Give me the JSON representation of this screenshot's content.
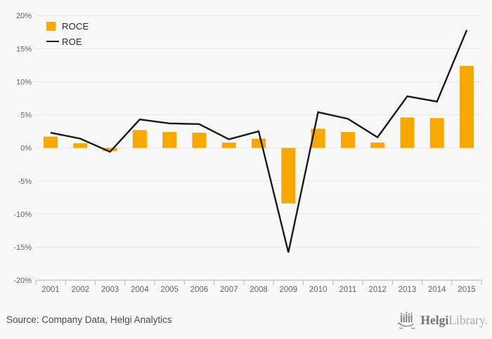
{
  "colors": {
    "background": "#f8f8f8",
    "bar": "#F8A800",
    "line": "#1a1a1a",
    "grid": "#e8e8e8",
    "axis": "#b7c0d7",
    "tick_label": "#666666",
    "legend_text": "#2b2b2b"
  },
  "chart_data": {
    "type": "bar",
    "subtype": "bar-with-line-overlay",
    "categories": [
      "2001",
      "2002",
      "2003",
      "2004",
      "2005",
      "2006",
      "2007",
      "2008",
      "2009",
      "2010",
      "2011",
      "2012",
      "2013",
      "2014",
      "2015"
    ],
    "series": [
      {
        "name": "ROCE",
        "type": "bar",
        "color": "#F8A800",
        "values": [
          1.7,
          0.7,
          -0.5,
          2.7,
          2.4,
          2.3,
          0.8,
          1.4,
          -8.4,
          2.9,
          2.4,
          0.8,
          4.6,
          4.5,
          12.4
        ]
      },
      {
        "name": "ROE",
        "type": "line",
        "color": "#1a1a1a",
        "values": [
          2.3,
          1.4,
          -0.6,
          4.3,
          3.7,
          3.6,
          1.3,
          2.5,
          -15.8,
          5.4,
          4.4,
          1.6,
          7.8,
          7.0,
          17.8
        ]
      }
    ],
    "title": "",
    "xlabel": "",
    "ylabel": "",
    "ylim": [
      -20,
      20
    ],
    "ytick_step": 5,
    "ytick_labels": [
      "20%",
      "15%",
      "10%",
      "5%",
      "0%",
      "-5%",
      "-10%",
      "-15%",
      "-20%"
    ],
    "grid": true,
    "legend_position": "top-left"
  },
  "footer": {
    "source": "Source: Company Data, Helgi Analytics"
  },
  "logo": {
    "brand_primary": "Helgi",
    "brand_secondary": "Library."
  }
}
